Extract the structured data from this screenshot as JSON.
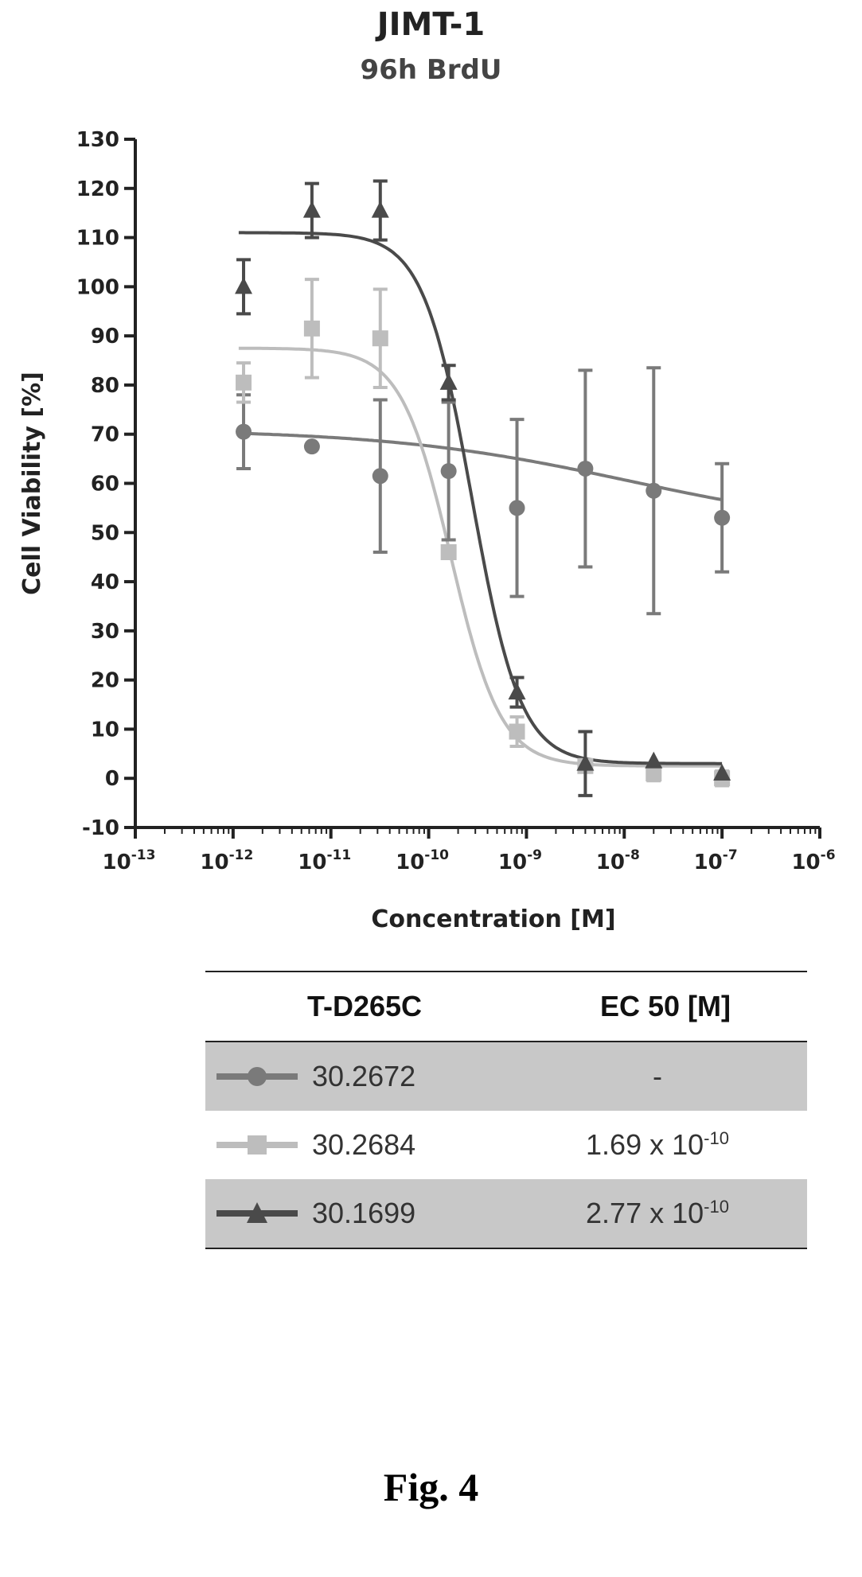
{
  "chart_data": {
    "type": "scatter",
    "title": "JIMT-1",
    "subtitle": "96h BrdU",
    "xlabel": "Concentration [M]",
    "ylabel": "Cell Viability [%]",
    "xscale": "log",
    "xlim": [
      1e-13,
      1e-06
    ],
    "ylim": [
      -10,
      130
    ],
    "yticks": [
      -10,
      0,
      10,
      20,
      30,
      40,
      50,
      60,
      70,
      80,
      90,
      100,
      110,
      120,
      130
    ],
    "xtick_exponents": [
      "-13",
      "-12",
      "-11",
      "-10",
      "-9",
      "-8",
      "-7",
      "-6"
    ],
    "grid": false,
    "series": [
      {
        "name": "30.2672",
        "marker": "circle",
        "color": "#7a7a7a",
        "x": [
          1.28e-12,
          6.4e-12,
          3.2e-11,
          1.6e-10,
          8e-10,
          4e-09,
          2e-08,
          1e-07
        ],
        "y": [
          70.5,
          67.5,
          61.5,
          62.5,
          55,
          63,
          58.5,
          53
        ],
        "err": [
          7.5,
          0,
          15.5,
          14,
          18,
          20,
          25,
          11
        ],
        "fit": {
          "top": 71,
          "bottom": 50,
          "logEC50": -7.95,
          "hill": 0.35
        }
      },
      {
        "name": "30.2684",
        "marker": "square",
        "color": "#bdbdbd",
        "x": [
          1.28e-12,
          6.4e-12,
          3.2e-11,
          1.6e-10,
          8e-10,
          4e-09,
          2e-08,
          1e-07
        ],
        "y": [
          80.5,
          91.5,
          89.5,
          46,
          9.5,
          2.5,
          1,
          0
        ],
        "err": [
          4,
          10,
          10,
          0,
          3,
          0,
          1.5,
          1.5
        ],
        "fit": {
          "top": 87.5,
          "bottom": 2.5,
          "logEC50": -9.772,
          "hill": 1.7
        }
      },
      {
        "name": "30.1699",
        "marker": "triangle",
        "color": "#4a4a4a",
        "x": [
          1.28e-12,
          6.4e-12,
          3.2e-11,
          1.6e-10,
          8e-10,
          4e-09,
          2e-08,
          1e-07
        ],
        "y": [
          100,
          115.5,
          115.5,
          80.5,
          17.5,
          3,
          3.5,
          1
        ],
        "err": [
          5.5,
          5.5,
          6,
          3.5,
          3,
          6.5,
          0,
          0
        ],
        "fit": {
          "top": 111,
          "bottom": 3,
          "logEC50": -9.558,
          "hill": 1.75
        }
      }
    ]
  },
  "legend_table": {
    "header_compound": "T-D265C",
    "header_ec50": "EC 50 [M]",
    "rows": [
      {
        "name": "30.2672",
        "ec50_text": "-",
        "ec50_base": "",
        "ec50_exp": "",
        "color": "#7a7a7a",
        "marker": "circle"
      },
      {
        "name": "30.2684",
        "ec50_text": "",
        "ec50_base": "1.69 x 10",
        "ec50_exp": "-10",
        "color": "#bdbdbd",
        "marker": "square"
      },
      {
        "name": "30.1699",
        "ec50_text": "",
        "ec50_base": "2.77 x 10",
        "ec50_exp": "-10",
        "color": "#4a4a4a",
        "marker": "triangle"
      }
    ]
  },
  "caption": "Fig. 4"
}
